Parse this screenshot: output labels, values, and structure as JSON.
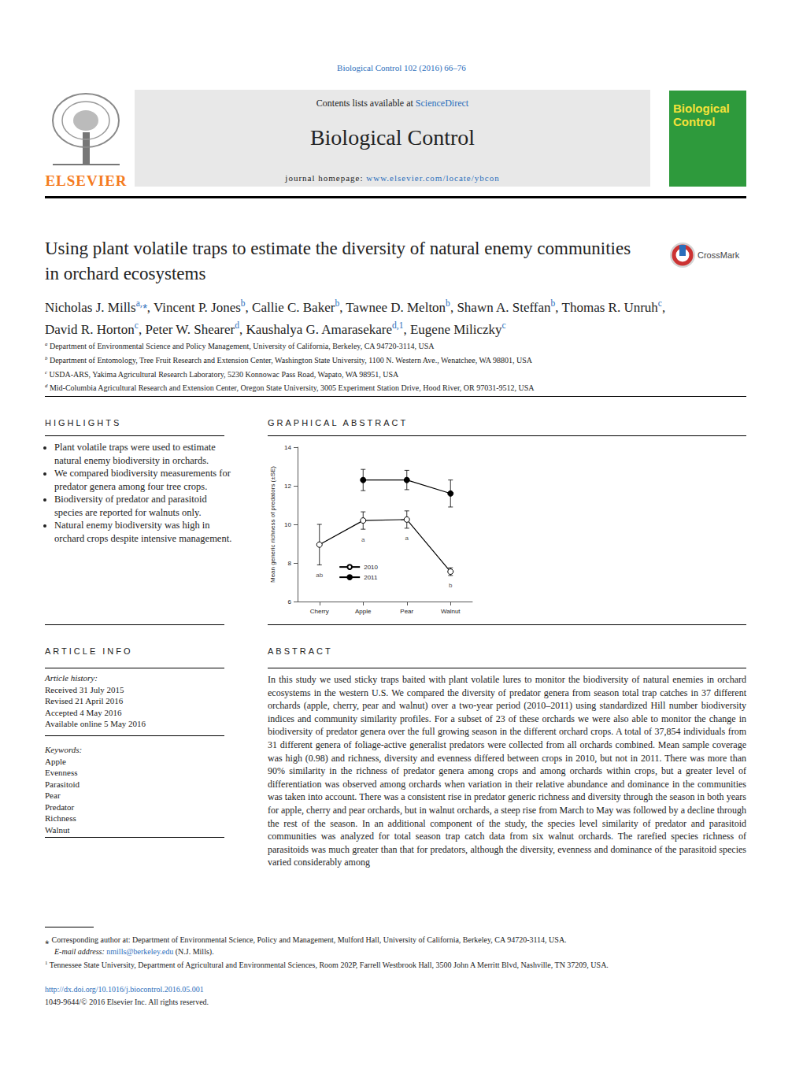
{
  "header": {
    "citation": "Biological Control 102 (2016) 66–76",
    "publisher": "ELSEVIER",
    "contents_prefix": "Contents lists available at ",
    "contents_link": "ScienceDirect",
    "journal_name": "Biological Control",
    "homepage_label": "journal homepage: ",
    "homepage_url": "www.elsevier.com/locate/ybcon",
    "cover_title": "Biological Control"
  },
  "title": "Using plant volatile traps to estimate the diversity of natural enemy communities in orchard ecosystems",
  "crossmark": "CrossMark",
  "author_separator": ", ",
  "authors": [
    {
      "name": "Nicholas J. Mills",
      "affil": "a,⁎"
    },
    {
      "name": "Vincent P. Jones",
      "affil": "b"
    },
    {
      "name": "Callie C. Baker",
      "affil": "b"
    },
    {
      "name": "Tawnee D. Melton",
      "affil": "b"
    },
    {
      "name": "Shawn A. Steffan",
      "affil": "b"
    },
    {
      "name": "Thomas R. Unruh",
      "affil": "c"
    },
    {
      "name": "David R. Horton",
      "affil": "c"
    },
    {
      "name": "Peter W. Shearer",
      "affil": "d"
    },
    {
      "name": "Kaushalya G. Amarasekare",
      "affil": "d,1"
    },
    {
      "name": "Eugene Miliczky",
      "affil": "c"
    }
  ],
  "affiliations": [
    {
      "letter": "a",
      "text": "Department of Environmental Science and Policy Management, University of California, Berkeley, CA 94720-3114, USA"
    },
    {
      "letter": "b",
      "text": "Department of Entomology, Tree Fruit Research and Extension Center, Washington State University, 1100 N. Western Ave., Wenatchee, WA 98801, USA"
    },
    {
      "letter": "c",
      "text": "USDA-ARS, Yakima Agricultural Research Laboratory, 5230 Konnowac Pass Road, Wapato, WA 98951, USA"
    },
    {
      "letter": "d",
      "text": "Mid-Columbia Agricultural Research and Extension Center, Oregon State University, 3005 Experiment Station Drive, Hood River, OR 97031-9512, USA"
    }
  ],
  "highlights": {
    "heading": "HIGHLIGHTS",
    "items": [
      "Plant volatile traps were used to estimate natural enemy biodiversity in orchards.",
      "We compared biodiversity measurements for predator genera among four tree crops.",
      "Biodiversity of predator and parasitoid species are reported for walnuts only.",
      "Natural enemy biodiversity was high in orchard crops despite intensive management."
    ]
  },
  "graphical_abstract": {
    "heading": "GRAPHICAL ABSTRACT"
  },
  "chart_data": {
    "type": "line",
    "categories": [
      "Cherry",
      "Apple",
      "Pear",
      "Walnut"
    ],
    "y_label": "Mean generic richness of predators (±SE)",
    "ylim": [
      6,
      14
    ],
    "yticks": [
      6,
      8,
      10,
      12,
      14
    ],
    "grid": false,
    "legend": "bottom",
    "series": [
      {
        "name": "2010",
        "color": "#000000",
        "marker": "open_circle",
        "values": [
          8.95,
          10.2,
          10.25,
          7.55
        ],
        "errors": [
          1.05,
          0.45,
          0.45,
          0.2
        ],
        "significance_labels": [
          "ab",
          "a",
          "a",
          "b"
        ]
      },
      {
        "name": "2011",
        "color": "#000000",
        "marker": "filled_circle",
        "values": [
          null,
          12.3,
          12.3,
          11.6
        ],
        "errors": [
          null,
          0.55,
          0.5,
          0.7
        ]
      }
    ]
  },
  "article_info": {
    "heading": "ARTICLE INFO",
    "history_label": "Article history:",
    "history": [
      "Received 31 July 2015",
      "Revised 21 April 2016",
      "Accepted 4 May 2016",
      "Available online 5 May 2016"
    ],
    "keywords_label": "Keywords:",
    "keywords": [
      "Apple",
      "Evenness",
      "Parasitoid",
      "Pear",
      "Predator",
      "Richness",
      "Walnut"
    ]
  },
  "abstract": {
    "heading": "ABSTRACT",
    "text": "In this study we used sticky traps baited with plant volatile lures to monitor the biodiversity of natural enemies in orchard ecosystems in the western U.S. We compared the diversity of predator genera from season total trap catches in 37 different orchards (apple, cherry, pear and walnut) over a two-year period (2010–2011) using standardized Hill number biodiversity indices and community similarity profiles. For a subset of 23 of these orchards we were also able to monitor the change in biodiversity of predator genera over the full growing season in the different orchard crops. A total of 37,854 individuals from 31 different genera of foliage-active generalist predators were collected from all orchards combined. Mean sample coverage was high (0.98) and richness, diversity and evenness differed between crops in 2010, but not in 2011. There was more than 90% similarity in the richness of predator genera among crops and among orchards within crops, but a greater level of differentiation was observed among orchards when variation in their relative abundance and dominance in the communities was taken into account. There was a consistent rise in predator generic richness and diversity through the season in both years for apple, cherry and pear orchards, but in walnut orchards, a steep rise from March to May was followed by a decline through the rest of the season. In an additional component of the study, the species level similarity of predator and parasitoid communities was analyzed for total season trap catch data from six walnut orchards. The rarefied species richness of parasitoids was much greater than that for predators, although the diversity, evenness and dominance of the parasitoid species varied considerably among"
  },
  "footnotes": {
    "corresponding_mark": "⁎",
    "corresponding": "Corresponding author at: Department of Environmental Science, Policy and Management, Mulford Hall, University of California, Berkeley, CA 94720-3114, USA.",
    "email_label": "E-mail address: ",
    "email": "nmills@berkeley.edu",
    "email_suffix": " (N.J. Mills).",
    "note_mark": "1",
    "note": "Tennessee State University, Department of Agricultural and Environmental Sciences, Room 202P, Farrell Westbrook Hall, 3500 John A Merritt Blvd, Nashville, TN 37209, USA."
  },
  "doi": "http://dx.doi.org/10.1016/j.biocontrol.2016.05.001",
  "copyright": "1049-9644/© 2016 Elsevier Inc. All rights reserved."
}
